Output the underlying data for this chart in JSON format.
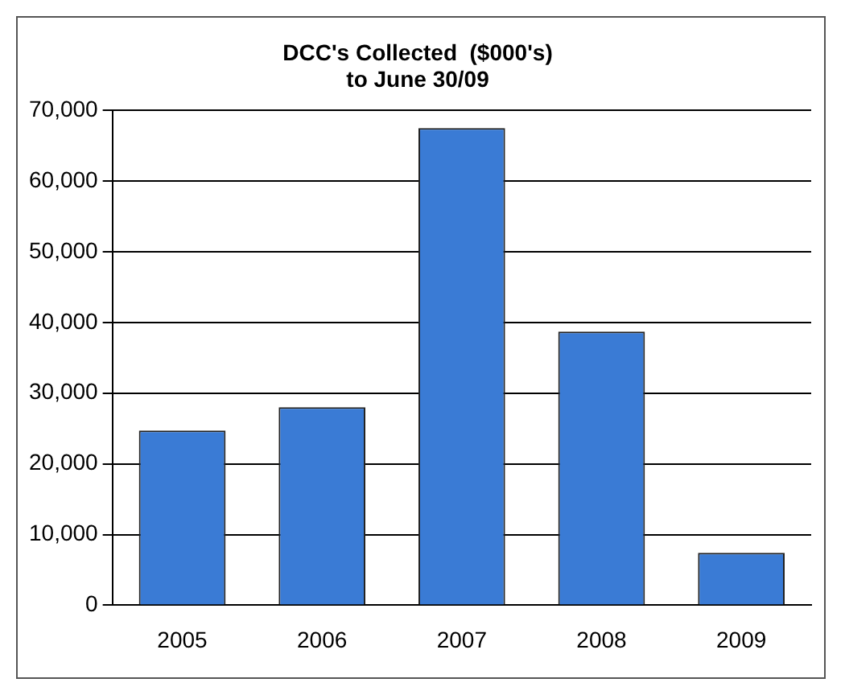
{
  "chart_data": {
    "type": "bar",
    "title": [
      "DCC's Collected  ($000's)",
      "to June 30/09"
    ],
    "categories": [
      "2005",
      "2006",
      "2007",
      "2008",
      "2009"
    ],
    "values": [
      24700,
      28000,
      67500,
      38700,
      7400
    ],
    "color": "#3a7bd5",
    "ylim": [
      0,
      70000
    ],
    "yticks": [
      0,
      {
        "value": 10000,
        "label": "10,000"
      },
      {
        "value": 20000,
        "label": "20,000"
      },
      {
        "value": 30000,
        "label": "30,000"
      },
      {
        "value": 40000,
        "label": "40,000"
      },
      {
        "value": 50000,
        "label": "50,000"
      },
      {
        "value": 60000,
        "label": "60,000"
      },
      {
        "value": 70000,
        "label": "70,000"
      }
    ],
    "grid": "y"
  }
}
